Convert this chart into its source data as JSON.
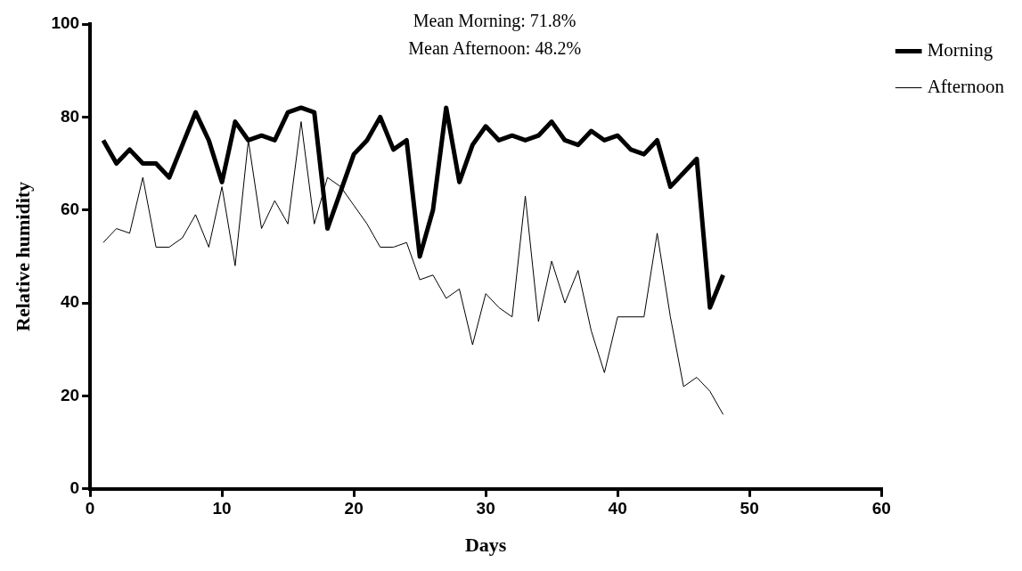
{
  "chart_data": {
    "type": "line",
    "xlabel": "Days",
    "ylabel": "Relative humidity",
    "annotations": [
      "Mean Morning: 71.8%",
      "Mean Afternoon: 48.2%"
    ],
    "x": [
      1,
      2,
      3,
      4,
      5,
      6,
      7,
      8,
      9,
      10,
      11,
      12,
      13,
      14,
      15,
      16,
      17,
      18,
      19,
      20,
      21,
      22,
      23,
      24,
      25,
      26,
      27,
      28,
      29,
      30,
      31,
      32,
      33,
      34,
      35,
      36,
      37,
      38,
      39,
      40,
      41,
      42,
      43,
      44,
      45,
      46,
      47,
      48
    ],
    "series": [
      {
        "name": "Morning",
        "color": "#000000",
        "values": [
          75,
          70,
          73,
          70,
          70,
          67,
          74,
          81,
          75,
          66,
          79,
          75,
          76,
          75,
          81,
          82,
          81,
          56,
          64,
          72,
          75,
          80,
          73,
          75,
          50,
          60,
          82,
          66,
          74,
          78,
          75,
          76,
          75,
          76,
          79,
          75,
          74,
          77,
          75,
          76,
          73,
          72,
          75,
          65,
          68,
          71,
          39,
          46
        ]
      },
      {
        "name": "Afternoon",
        "color": "#000000",
        "values": [
          53,
          56,
          55,
          67,
          52,
          52,
          54,
          59,
          52,
          65,
          48,
          75,
          56,
          62,
          57,
          79,
          57,
          67,
          65,
          61,
          57,
          52,
          52,
          53,
          45,
          46,
          41,
          43,
          31,
          42,
          39,
          37,
          63,
          36,
          49,
          40,
          47,
          34,
          25,
          37,
          37,
          37,
          55,
          37,
          22,
          24,
          21,
          16
        ]
      }
    ],
    "xlim": [
      0,
      60
    ],
    "xticks": [
      0,
      10,
      20,
      30,
      40,
      50,
      60
    ],
    "ylim": [
      0,
      100
    ],
    "yticks": [
      0,
      20,
      40,
      60,
      80,
      100
    ],
    "grid": false,
    "legend": "top right",
    "marker": "none",
    "line_style": "solid"
  }
}
